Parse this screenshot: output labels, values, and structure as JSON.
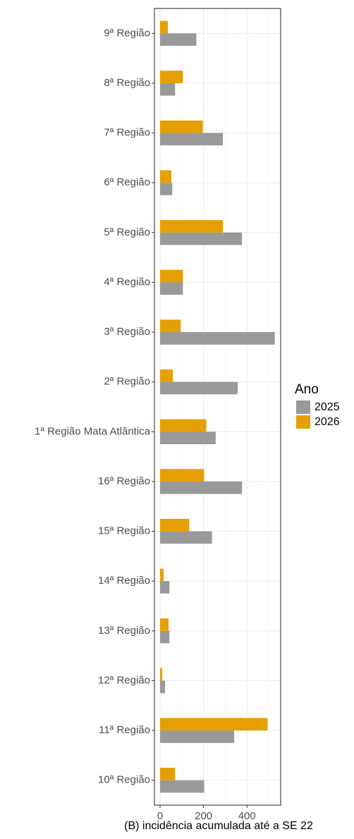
{
  "chart_data": {
    "type": "bar",
    "orientation": "horizontal",
    "x_label": "(B) incidência acumulada até a SE 22",
    "legend_title": "Ano",
    "categories": [
      "9ª Região",
      "8ª Região",
      "7ª Região",
      "6ª Região",
      "5ª Região",
      "4ª Região",
      "3ª Região",
      "2ª Região",
      "1ª Região Mata Atlântica",
      "16ª Região",
      "15ª Região",
      "14ª Região",
      "13ª Região",
      "12ª Região",
      "11ª Região",
      "10ª Região"
    ],
    "series": [
      {
        "name": "2025",
        "color": "#999999",
        "values": [
          167,
          69,
          289,
          56,
          377,
          105,
          528,
          357,
          256,
          377,
          239,
          43,
          43,
          23,
          341,
          203
        ]
      },
      {
        "name": "2026",
        "color": "#E69F00",
        "values": [
          36,
          105,
          197,
          52,
          289,
          105,
          95,
          59,
          213,
          203,
          134,
          16,
          39,
          10,
          495,
          69
        ]
      }
    ],
    "xlim": [
      -26,
      555
    ],
    "xticks": [
      0,
      200,
      400
    ],
    "minor_xticks": [
      100,
      300,
      500
    ],
    "grid": true,
    "legend": "right"
  }
}
